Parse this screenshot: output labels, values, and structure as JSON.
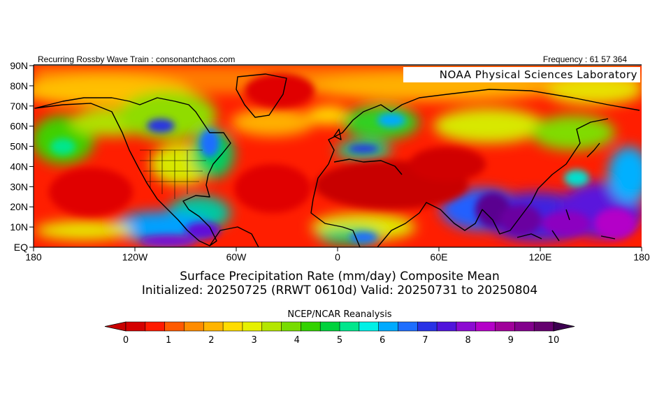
{
  "header": {
    "left_text": "Recurring Rossby Wave Train : consonantchaos.com",
    "right_text": "Frequency : 61 57 364"
  },
  "map": {
    "overlay_label": "NOAA Physical Sciences Laboratory",
    "lat_labels": [
      "90N",
      "80N",
      "70N",
      "60N",
      "50N",
      "40N",
      "30N",
      "20N",
      "10N",
      "EQ"
    ],
    "lon_labels": [
      "180",
      "120W",
      "60W",
      "0",
      "60E",
      "120E",
      "180"
    ]
  },
  "title": {
    "line1": "Surface Precipitation Rate (mm/day) Composite Mean",
    "line2": "Initialized: 20250725 (RRWT 0610d) Valid: 20250731 to 20250804"
  },
  "source_label": "NCEP/NCAR Reanalysis",
  "colorbar": {
    "labels": [
      "0",
      "1",
      "2",
      "3",
      "4",
      "5",
      "6",
      "7",
      "8",
      "9",
      "10"
    ],
    "colors": [
      "#d40000",
      "#ff1a00",
      "#ff5a00",
      "#ff8c00",
      "#ffb400",
      "#ffdc00",
      "#e6f000",
      "#b4e600",
      "#78dc00",
      "#32d200",
      "#00d23c",
      "#00e68c",
      "#00f0e6",
      "#00aaff",
      "#1e6eff",
      "#2832e6",
      "#5014dc",
      "#8c0ad2",
      "#b400c8",
      "#a0009a",
      "#82008c",
      "#64006e"
    ],
    "end_low": "#c80000",
    "end_high": "#3c0050"
  }
}
